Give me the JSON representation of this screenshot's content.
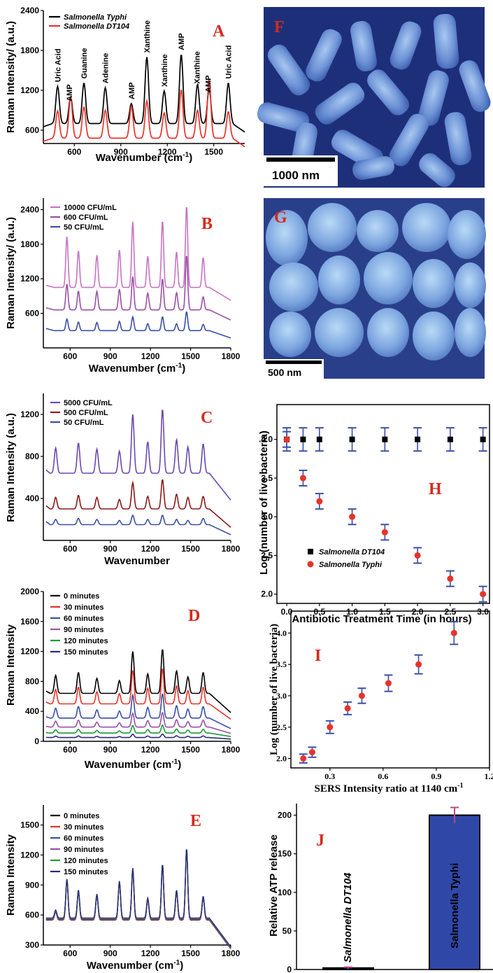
{
  "labels": {
    "A": "A",
    "B": "B",
    "C": "C",
    "D": "D",
    "E": "E",
    "F": "F",
    "G": "G",
    "H": "H",
    "I": "I",
    "J": "J"
  },
  "micrographs": [
    {
      "panel": "F",
      "scale_bar": "1000 nm"
    },
    {
      "panel": "G",
      "scale_bar": "500 nm"
    }
  ],
  "colors": {
    "black": "#000000",
    "red": "#e8332a",
    "blue": "#3b4fa6",
    "purple": "#9b4fa8",
    "magenta_light": "#c873c4",
    "dark_red": "#8b1a1a",
    "violet": "#6a4ab0",
    "green": "#1f9a3a",
    "navy": "#2b2b7a",
    "label_red": "#d42a1e",
    "bar_blue": "#2f48a8",
    "err_magenta": "#c0468c"
  },
  "chart_data": [
    {
      "panel": "A",
      "type": "line",
      "xlabel": "Wavenumber (cm-1)",
      "xlabel_sup": "-1",
      "ylabel": "Raman Intensity/ (a.u.)",
      "xlim": [
        400,
        1700
      ],
      "ylim": [
        400,
        2400
      ],
      "xticks": [
        600,
        900,
        1200,
        1500
      ],
      "yticks": [
        600,
        1200,
        1800,
        2400
      ],
      "series": [
        {
          "name": "Salmonella Typhi",
          "color": "black",
          "baseline": 700,
          "peaks": [
            [
              492,
              560
            ],
            [
              576,
              400
            ],
            [
              662,
              610
            ],
            [
              800,
              540
            ],
            [
              968,
              300
            ],
            [
              1068,
              1000
            ],
            [
              1180,
              490
            ],
            [
              1290,
              1040
            ],
            [
              1395,
              590
            ],
            [
              1470,
              520
            ],
            [
              1594,
              610
            ]
          ]
        },
        {
          "name": "Salmonella DT104",
          "color": "red",
          "baseline": 480,
          "peaks": [
            [
              492,
              410
            ],
            [
              576,
              620
            ],
            [
              662,
              470
            ],
            [
              800,
              420
            ],
            [
              968,
              480
            ],
            [
              1068,
              560
            ],
            [
              1180,
              380
            ],
            [
              1290,
              730
            ],
            [
              1395,
              420
            ],
            [
              1470,
              880
            ],
            [
              1594,
              400
            ]
          ]
        }
      ],
      "annotations": [
        {
          "text": "Uric Acid",
          "x": 492
        },
        {
          "text": "AMP",
          "x": 566
        },
        {
          "text": "Guanine",
          "x": 662
        },
        {
          "text": "Adenine",
          "x": 800
        },
        {
          "text": "AMP",
          "x": 968
        },
        {
          "text": "Xanthine",
          "x": 1068
        },
        {
          "text": "Xanthine",
          "x": 1180
        },
        {
          "text": "AMP",
          "x": 1290
        },
        {
          "text": "Xanthine",
          "x": 1390
        },
        {
          "text": "AMP",
          "x": 1462
        },
        {
          "text": "Uric Acid",
          "x": 1594
        }
      ]
    },
    {
      "panel": "B",
      "type": "line",
      "xlabel": "Wavenumber (cm-1)",
      "xlabel_sup": "-1",
      "ylabel": "Raman Intensity/ (a.u.)",
      "xlim": [
        400,
        1800
      ],
      "ylim": [
        0,
        2600
      ],
      "xticks": [
        600,
        900,
        1200,
        1500,
        1800
      ],
      "yticks": [
        600,
        1200,
        1800,
        2400
      ],
      "series": [
        {
          "name": "10000 CFU/mL",
          "color": "magenta_light",
          "baseline": 1050,
          "peaks": [
            [
              576,
              880
            ],
            [
              662,
              640
            ],
            [
              800,
              560
            ],
            [
              968,
              650
            ],
            [
              1068,
              1140
            ],
            [
              1180,
              540
            ],
            [
              1290,
              1160
            ],
            [
              1395,
              620
            ],
            [
              1470,
              1420
            ],
            [
              1594,
              520
            ]
          ]
        },
        {
          "name": "600 CFU/mL",
          "color": "purple",
          "baseline": 660,
          "peaks": [
            [
              576,
              450
            ],
            [
              662,
              330
            ],
            [
              800,
              320
            ],
            [
              968,
              360
            ],
            [
              1068,
              580
            ],
            [
              1180,
              290
            ],
            [
              1290,
              540
            ],
            [
              1395,
              300
            ],
            [
              1470,
              950
            ],
            [
              1594,
              230
            ]
          ]
        },
        {
          "name": "50 CFU/mL",
          "color": "blue",
          "baseline": 300,
          "peaks": [
            [
              576,
              200
            ],
            [
              662,
              150
            ],
            [
              800,
              140
            ],
            [
              968,
              160
            ],
            [
              1068,
              240
            ],
            [
              1180,
              120
            ],
            [
              1290,
              240
            ],
            [
              1395,
              120
            ],
            [
              1470,
              330
            ],
            [
              1594,
              110
            ]
          ]
        }
      ]
    },
    {
      "panel": "C",
      "type": "line",
      "xlabel": "Wavenumber",
      "ylabel": "Raman Intensity (a.u.)",
      "xlim": [
        400,
        1800
      ],
      "ylim": [
        0,
        1400
      ],
      "xticks": [
        600,
        900,
        1200,
        1500,
        1800
      ],
      "yticks": [
        400,
        800,
        1200
      ],
      "series": [
        {
          "name": "5000 CFU/mL",
          "color": "violet",
          "baseline": 640,
          "peaks": [
            [
              492,
              240
            ],
            [
              662,
              290
            ],
            [
              800,
              230
            ],
            [
              968,
              210
            ],
            [
              1068,
              560
            ],
            [
              1180,
              300
            ],
            [
              1290,
              610
            ],
            [
              1395,
              320
            ],
            [
              1480,
              250
            ],
            [
              1594,
              280
            ]
          ]
        },
        {
          "name": "500 CFU/mL",
          "color": "dark_red",
          "baseline": 300,
          "peaks": [
            [
              492,
              110
            ],
            [
              662,
              130
            ],
            [
              800,
              110
            ],
            [
              968,
              90
            ],
            [
              1068,
              250
            ],
            [
              1180,
              120
            ],
            [
              1290,
              280
            ],
            [
              1395,
              140
            ],
            [
              1480,
              110
            ],
            [
              1594,
              120
            ]
          ]
        },
        {
          "name": "50 CFU/mL",
          "color": "blue",
          "baseline": 150,
          "peaks": [
            [
              492,
              50
            ],
            [
              662,
              60
            ],
            [
              800,
              50
            ],
            [
              968,
              40
            ],
            [
              1068,
              90
            ],
            [
              1180,
              50
            ],
            [
              1290,
              90
            ],
            [
              1395,
              50
            ],
            [
              1480,
              40
            ],
            [
              1594,
              60
            ]
          ]
        }
      ]
    },
    {
      "panel": "D",
      "type": "line",
      "xlabel": "Wavenumber (cm-1)",
      "xlabel_sup": "-1",
      "ylabel": "Raman Intensity",
      "xlim": [
        400,
        1800
      ],
      "ylim": [
        0,
        2000
      ],
      "xticks": [
        600,
        900,
        1200,
        1500,
        1800
      ],
      "yticks": [
        0,
        400,
        800,
        1200,
        1600,
        2000
      ],
      "series": [
        {
          "name": "0 minutes",
          "color": "black",
          "baseline": 640,
          "scale": 1.0
        },
        {
          "name": "30 minutes",
          "color": "red",
          "baseline": 500,
          "scale": 0.8
        },
        {
          "name": "60 minutes",
          "color": "blue",
          "baseline": 310,
          "scale": 0.55
        },
        {
          "name": "90 minutes",
          "color": "purple",
          "baseline": 190,
          "scale": 0.33
        },
        {
          "name": "120 minutes",
          "color": "green",
          "baseline": 110,
          "scale": 0.18
        },
        {
          "name": "150 minutes",
          "color": "navy",
          "baseline": 50,
          "scale": 0.08
        }
      ],
      "peaks": [
        [
          492,
          240
        ],
        [
          662,
          280
        ],
        [
          800,
          200
        ],
        [
          968,
          170
        ],
        [
          1068,
          560
        ],
        [
          1180,
          260
        ],
        [
          1290,
          590
        ],
        [
          1395,
          300
        ],
        [
          1480,
          220
        ],
        [
          1594,
          280
        ]
      ]
    },
    {
      "panel": "E",
      "type": "line",
      "xlabel": "Wavenumber (cm-1)",
      "xlabel_sup": "-1",
      "ylabel": "Raman Intensity",
      "xlim": [
        400,
        1800
      ],
      "ylim": [
        300,
        1700
      ],
      "xticks": [
        600,
        900,
        1200,
        1500,
        1800
      ],
      "yticks": [
        300,
        600,
        900,
        1200,
        1500
      ],
      "series": [
        {
          "name": "0 minutes",
          "color": "black"
        },
        {
          "name": "30 minutes",
          "color": "red"
        },
        {
          "name": "60 minutes",
          "color": "blue"
        },
        {
          "name": "90 minutes",
          "color": "purple"
        },
        {
          "name": "120 minutes",
          "color": "green"
        },
        {
          "name": "150 minutes",
          "color": "navy"
        }
      ],
      "baseline": 560,
      "peaks": [
        [
          492,
          80
        ],
        [
          576,
          390
        ],
        [
          662,
          280
        ],
        [
          800,
          240
        ],
        [
          968,
          370
        ],
        [
          1068,
          500
        ],
        [
          1180,
          200
        ],
        [
          1290,
          540
        ],
        [
          1395,
          280
        ],
        [
          1470,
          700
        ],
        [
          1594,
          220
        ]
      ]
    },
    {
      "panel": "H",
      "type": "scatter",
      "xlabel": "Antibiotic Treatment Time (in hours)",
      "ylabel": "Log (number of live bacteria)",
      "xlim": [
        -0.15,
        3.1
      ],
      "ylim": [
        1.88,
        4.45
      ],
      "xticks": [
        0.0,
        0.5,
        1.0,
        1.5,
        2.0,
        2.5,
        3.0
      ],
      "yticks": [
        2.0,
        2.5,
        3.0,
        3.5,
        4.0
      ],
      "series": [
        {
          "name": "Salmonella DT104",
          "marker": "square",
          "color": "black",
          "x": [
            0,
            0.25,
            0.5,
            1.0,
            1.5,
            2.0,
            2.5,
            3.0
          ],
          "y": [
            4,
            4,
            4,
            4,
            4,
            4,
            4,
            4
          ],
          "err": 0.15
        },
        {
          "name": "Salmonella Typhi",
          "marker": "circle",
          "color": "red",
          "x": [
            0,
            0.25,
            0.5,
            1.0,
            1.5,
            2.0,
            2.5,
            3.0
          ],
          "y": [
            4.0,
            3.5,
            3.2,
            3.0,
            2.8,
            2.5,
            2.2,
            2.0
          ],
          "err": 0.1
        }
      ]
    },
    {
      "panel": "I",
      "type": "scatter",
      "xlabel": "SERS Intensity ratio at 1140 cm-1",
      "xlabel_sup": "-1",
      "ylabel": "Log (number of live bacteria)",
      "xlim": [
        0.08,
        1.2
      ],
      "ylim": [
        1.85,
        4.35
      ],
      "xticks": [
        0.3,
        0.6,
        0.9,
        1.2
      ],
      "yticks": [
        2.0,
        2.5,
        3.0,
        3.5,
        4.0
      ],
      "series": [
        {
          "color": "red",
          "x": [
            0.15,
            0.2,
            0.3,
            0.4,
            0.48,
            0.63,
            0.8,
            1.0
          ],
          "y": [
            2.0,
            2.1,
            2.5,
            2.8,
            3.0,
            3.2,
            3.5,
            4.0
          ],
          "err": [
            0.07,
            0.08,
            0.1,
            0.1,
            0.12,
            0.13,
            0.15,
            0.18
          ]
        }
      ]
    },
    {
      "panel": "J",
      "type": "bar",
      "ylabel": "Relative ATP release",
      "ylim": [
        0,
        215
      ],
      "yticks": [
        0,
        50,
        100,
        150,
        200
      ],
      "categories": [
        "Salmonella DT104",
        "Salmonella Typhi"
      ],
      "values": [
        2,
        200
      ],
      "errors": [
        1,
        10
      ]
    }
  ]
}
